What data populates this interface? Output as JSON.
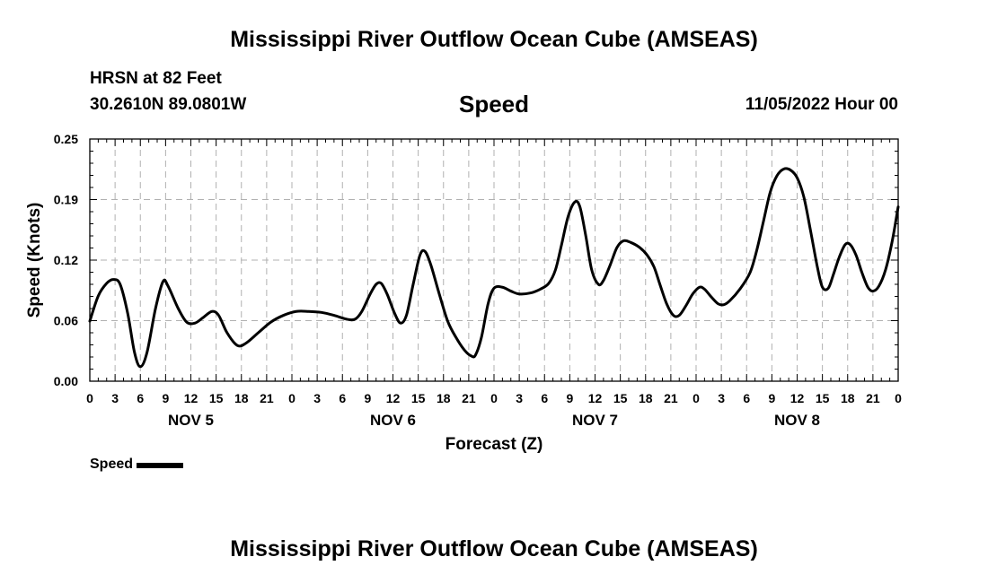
{
  "header": {
    "title": "Mississippi River Outflow Ocean Cube (AMSEAS)",
    "station": "HRSN at 82 Feet",
    "coords": "30.2610N  89.0801W",
    "subtitle": "Speed",
    "datetime": "11/05/2022 Hour 00"
  },
  "footer": {
    "title": "Mississippi River Outflow Ocean Cube (AMSEAS)"
  },
  "legend": {
    "label": "Speed",
    "color": "#000000"
  },
  "chart_data": {
    "type": "line",
    "title": "Speed",
    "xlabel": "Forecast (Z)",
    "ylabel": "Speed (Knots)",
    "x_unit": "forecast hour from 11/05/2022 00Z",
    "xlim": [
      0,
      96
    ],
    "ylim": [
      0,
      0.25
    ],
    "y_ticks": [
      "0.00",
      "0.06",
      "0.12",
      "0.19",
      "0.25"
    ],
    "x_tick_labels": [
      "0",
      "3",
      "6",
      "9",
      "12",
      "15",
      "18",
      "21",
      "0",
      "3",
      "6",
      "9",
      "12",
      "15",
      "18",
      "21",
      "0",
      "3",
      "6",
      "9",
      "12",
      "15",
      "18",
      "21",
      "0",
      "3",
      "6",
      "9",
      "12",
      "15",
      "18",
      "21",
      "0"
    ],
    "day_labels": [
      "NOV 5",
      "NOV 6",
      "NOV 7",
      "NOV 8"
    ],
    "grid": true,
    "legend_position": "bottom-left",
    "series": [
      {
        "name": "Speed",
        "color": "#000000",
        "points": [
          [
            0,
            0.062
          ],
          [
            1,
            0.088
          ],
          [
            2,
            0.101
          ],
          [
            2.8,
            0.105
          ],
          [
            3.6,
            0.1
          ],
          [
            4.5,
            0.07
          ],
          [
            5.3,
            0.03
          ],
          [
            6,
            0.015
          ],
          [
            6.8,
            0.03
          ],
          [
            7.8,
            0.075
          ],
          [
            8.7,
            0.103
          ],
          [
            9.3,
            0.098
          ],
          [
            10.5,
            0.075
          ],
          [
            11.5,
            0.061
          ],
          [
            12.5,
            0.06
          ],
          [
            13.5,
            0.066
          ],
          [
            14.5,
            0.072
          ],
          [
            15.3,
            0.068
          ],
          [
            16.3,
            0.05
          ],
          [
            17.5,
            0.037
          ],
          [
            18.5,
            0.039
          ],
          [
            20,
            0.05
          ],
          [
            21.5,
            0.061
          ],
          [
            23,
            0.068
          ],
          [
            24.5,
            0.072
          ],
          [
            26,
            0.072
          ],
          [
            27.5,
            0.071
          ],
          [
            29,
            0.068
          ],
          [
            30.5,
            0.064
          ],
          [
            31.5,
            0.064
          ],
          [
            32.3,
            0.072
          ],
          [
            33.3,
            0.09
          ],
          [
            34,
            0.1
          ],
          [
            34.6,
            0.101
          ],
          [
            35.3,
            0.09
          ],
          [
            36.2,
            0.07
          ],
          [
            36.9,
            0.06
          ],
          [
            37.6,
            0.068
          ],
          [
            38.4,
            0.1
          ],
          [
            39.2,
            0.13
          ],
          [
            39.8,
            0.134
          ],
          [
            40.5,
            0.12
          ],
          [
            41.5,
            0.09
          ],
          [
            42.5,
            0.062
          ],
          [
            43.5,
            0.045
          ],
          [
            44.5,
            0.032
          ],
          [
            45.3,
            0.026
          ],
          [
            45.8,
            0.027
          ],
          [
            46.5,
            0.045
          ],
          [
            47.3,
            0.08
          ],
          [
            48,
            0.096
          ],
          [
            49,
            0.097
          ],
          [
            50,
            0.093
          ],
          [
            51,
            0.09
          ],
          [
            52.3,
            0.091
          ],
          [
            53.5,
            0.095
          ],
          [
            54.5,
            0.101
          ],
          [
            55.3,
            0.115
          ],
          [
            56,
            0.14
          ],
          [
            56.8,
            0.17
          ],
          [
            57.6,
            0.185
          ],
          [
            58.2,
            0.18
          ],
          [
            58.9,
            0.15
          ],
          [
            59.6,
            0.115
          ],
          [
            60.4,
            0.1
          ],
          [
            61,
            0.104
          ],
          [
            61.8,
            0.12
          ],
          [
            62.6,
            0.138
          ],
          [
            63.4,
            0.145
          ],
          [
            64.3,
            0.143
          ],
          [
            65.3,
            0.138
          ],
          [
            66.2,
            0.13
          ],
          [
            67,
            0.118
          ],
          [
            67.7,
            0.1
          ],
          [
            68.5,
            0.08
          ],
          [
            69.3,
            0.068
          ],
          [
            70,
            0.068
          ],
          [
            70.8,
            0.078
          ],
          [
            71.6,
            0.09
          ],
          [
            72.4,
            0.097
          ],
          [
            73,
            0.095
          ],
          [
            73.8,
            0.087
          ],
          [
            74.6,
            0.08
          ],
          [
            75.3,
            0.079
          ],
          [
            76,
            0.083
          ],
          [
            77.2,
            0.095
          ],
          [
            78.4,
            0.112
          ],
          [
            79.2,
            0.135
          ],
          [
            80,
            0.165
          ],
          [
            80.8,
            0.195
          ],
          [
            81.6,
            0.212
          ],
          [
            82.4,
            0.219
          ],
          [
            83.2,
            0.218
          ],
          [
            84,
            0.21
          ],
          [
            84.8,
            0.19
          ],
          [
            85.6,
            0.155
          ],
          [
            86.4,
            0.118
          ],
          [
            87,
            0.097
          ],
          [
            87.7,
            0.096
          ],
          [
            88.3,
            0.11
          ],
          [
            89,
            0.128
          ],
          [
            89.7,
            0.141
          ],
          [
            90.3,
            0.141
          ],
          [
            91,
            0.13
          ],
          [
            91.7,
            0.112
          ],
          [
            92.4,
            0.097
          ],
          [
            93,
            0.093
          ],
          [
            93.7,
            0.098
          ],
          [
            94.5,
            0.115
          ],
          [
            95.3,
            0.145
          ],
          [
            96,
            0.18
          ]
        ]
      }
    ]
  }
}
